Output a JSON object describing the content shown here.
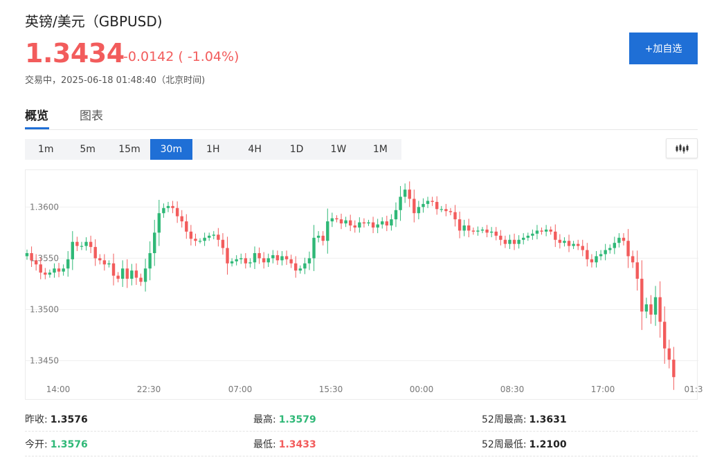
{
  "header": {
    "title": "英镑/美元（GBPUSD)",
    "price": "1.3434",
    "change": "-0.0142 ( -1.04%)",
    "status": "交易中，2025-06-18 01:48:40（北京时间)",
    "add_button": "+加自选"
  },
  "tabs": [
    {
      "label": "概览",
      "active": true
    },
    {
      "label": "图表",
      "active": false
    }
  ],
  "periods": [
    {
      "label": "1m",
      "active": false
    },
    {
      "label": "5m",
      "active": false
    },
    {
      "label": "15m",
      "active": false
    },
    {
      "label": "30m",
      "active": true
    },
    {
      "label": "1H",
      "active": false
    },
    {
      "label": "4H",
      "active": false
    },
    {
      "label": "1D",
      "active": false
    },
    {
      "label": "1W",
      "active": false
    },
    {
      "label": "1M",
      "active": false
    }
  ],
  "chart_type_icon": "candlestick-icon",
  "colors": {
    "up": "#2fb877",
    "down": "#f25c5c",
    "accent": "#1f6fd6"
  },
  "chart_data": {
    "type": "candlestick",
    "y_ticks": [
      "1.3600",
      "1.3550",
      "1.3500",
      "1.3450"
    ],
    "x_ticks": [
      "14:00",
      "22:30",
      "07:00",
      "15:30",
      "00:00",
      "08:30",
      "17:00",
      "01:3"
    ],
    "ylim": [
      1.342,
      1.3636
    ],
    "grid": true,
    "closes": [
      1.3555,
      1.3548,
      1.3544,
      1.3536,
      1.3534,
      1.3536,
      1.354,
      1.3537,
      1.354,
      1.3549,
      1.3566,
      1.3562,
      1.3562,
      1.3566,
      1.3561,
      1.355,
      1.3548,
      1.3544,
      1.3545,
      1.3533,
      1.353,
      1.354,
      1.353,
      1.3538,
      1.3531,
      1.3527,
      1.354,
      1.3555,
      1.3575,
      1.3594,
      1.3599,
      1.3601,
      1.3599,
      1.3591,
      1.3586,
      1.3576,
      1.3569,
      1.3567,
      1.3567,
      1.357,
      1.3572,
      1.3573,
      1.3568,
      1.356,
      1.3545,
      1.3547,
      1.3549,
      1.355,
      1.3545,
      1.3546,
      1.3555,
      1.355,
      1.3546,
      1.355,
      1.3553,
      1.3548,
      1.3552,
      1.3549,
      1.3545,
      1.3538,
      1.354,
      1.3545,
      1.355,
      1.357,
      1.3572,
      1.3567,
      1.3586,
      1.3589,
      1.3588,
      1.3584,
      1.3587,
      1.3582,
      1.358,
      1.3585,
      1.3584,
      1.3585,
      1.358,
      1.3583,
      1.3586,
      1.3582,
      1.3588,
      1.3597,
      1.361,
      1.3617,
      1.3608,
      1.3594,
      1.36,
      1.3603,
      1.3606,
      1.3605,
      1.3598,
      1.3598,
      1.3596,
      1.3595,
      1.3588,
      1.3577,
      1.3582,
      1.3577,
      1.3576,
      1.3577,
      1.3578,
      1.3575,
      1.3576,
      1.3572,
      1.3568,
      1.3564,
      1.3568,
      1.3564,
      1.3568,
      1.357,
      1.3572,
      1.3574,
      1.3577,
      1.3576,
      1.3578,
      1.3576,
      1.3568,
      1.3565,
      1.3567,
      1.3562,
      1.3564,
      1.3562,
      1.3558,
      1.3549,
      1.3546,
      1.3552,
      1.3554,
      1.3558,
      1.356,
      1.3565,
      1.357,
      1.3567,
      1.3552,
      1.3546,
      1.353,
      1.3498,
      1.3505,
      1.3495,
      1.3512,
      1.3488,
      1.3462,
      1.3451,
      1.3434
    ],
    "stats": [
      [
        {
          "label": "昨收:",
          "value": "1.3576",
          "tone": "neutral"
        },
        {
          "label": "最高:",
          "value": "1.3579",
          "tone": "up"
        },
        {
          "label": "52周最高:",
          "value": "1.3631",
          "tone": "neutral"
        }
      ],
      [
        {
          "label": "今开:",
          "value": "1.3576",
          "tone": "up"
        },
        {
          "label": "最低:",
          "value": "1.3433",
          "tone": "down"
        },
        {
          "label": "52周最低:",
          "value": "1.2100",
          "tone": "neutral"
        }
      ]
    ]
  }
}
